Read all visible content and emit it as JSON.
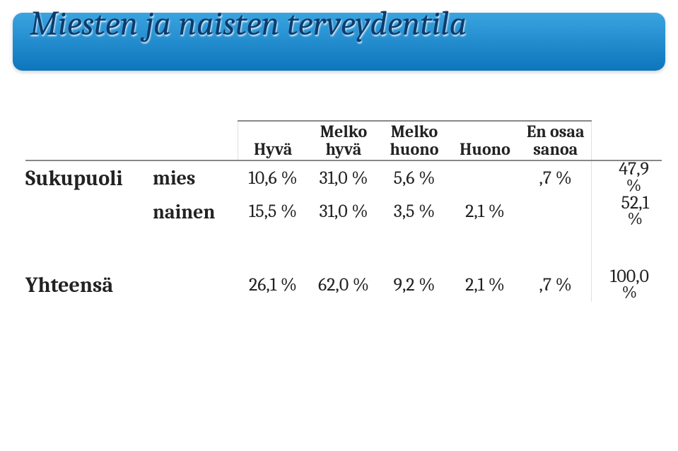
{
  "title": "Miesten ja naisten terveydentila",
  "columns": {
    "c1": "Hyvä",
    "c2_top": "Melko",
    "c2_bot": "hyvä",
    "c3_top": "Melko",
    "c3_bot": "huono",
    "c4": "Huono",
    "c5_top": "En osaa",
    "c5_bot": "sanoa"
  },
  "rowlabels": {
    "group": "Sukupuoli",
    "r1": "mies",
    "r2": "nainen",
    "total": "Yhteensä"
  },
  "rows": {
    "mies": {
      "c1": "10,6 %",
      "c2": "31,0 %",
      "c3": "5,6 %",
      "c4": "",
      "c5": ",7 %",
      "tot_top": "47,9",
      "tot_bot": "%"
    },
    "nainen": {
      "c1": "15,5 %",
      "c2": "31,0 %",
      "c3": "3,5 %",
      "c4": "2,1 %",
      "c5": "",
      "tot_top": "52,1",
      "tot_bot": "%"
    },
    "total": {
      "c1": "26,1 %",
      "c2": "62,0 %",
      "c3": "9,2 %",
      "c4": "2,1 %",
      "c5": ",7 %",
      "tot_top": "100,0",
      "tot_bot": "%"
    }
  },
  "style": {
    "title_gradient_top": "#3aa4e0",
    "title_gradient_bottom": "#0d75bc",
    "title_text_color": "#0c3c6e"
  }
}
